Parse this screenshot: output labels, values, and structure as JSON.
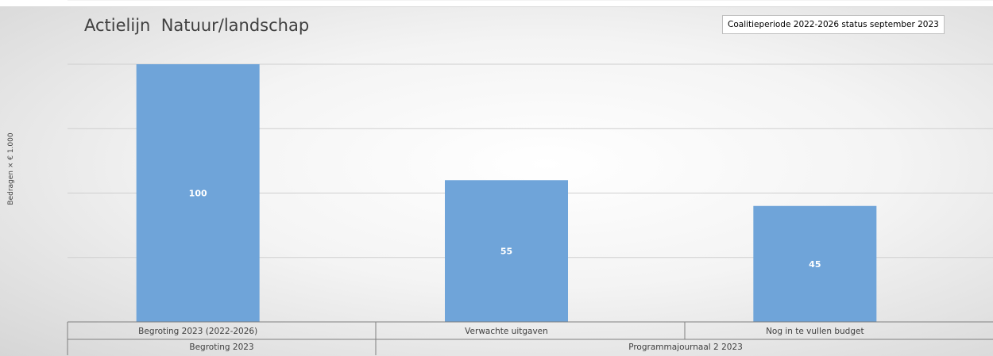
{
  "chart_data": {
    "type": "bar",
    "title": "Actielijn  Natuur/landschap",
    "subtitle": "Coalitieperiode 2022-2026 status september 2023",
    "ylabel": "Bedragen × € 1.000",
    "ylim": [
      0,
      125
    ],
    "grid": true,
    "categories": [
      "Begroting 2023 (2022-2026)",
      "Verwachte uitgaven",
      "Nog in te vullen budget"
    ],
    "groups": [
      {
        "label": "Begroting 2023",
        "span": 1
      },
      {
        "label": "Programmajournaal 2 2023",
        "span": 2
      }
    ],
    "values": [
      100,
      55,
      45
    ],
    "data_labels": [
      "100",
      "55",
      "45"
    ],
    "bar_color": "#6fa4d9"
  }
}
